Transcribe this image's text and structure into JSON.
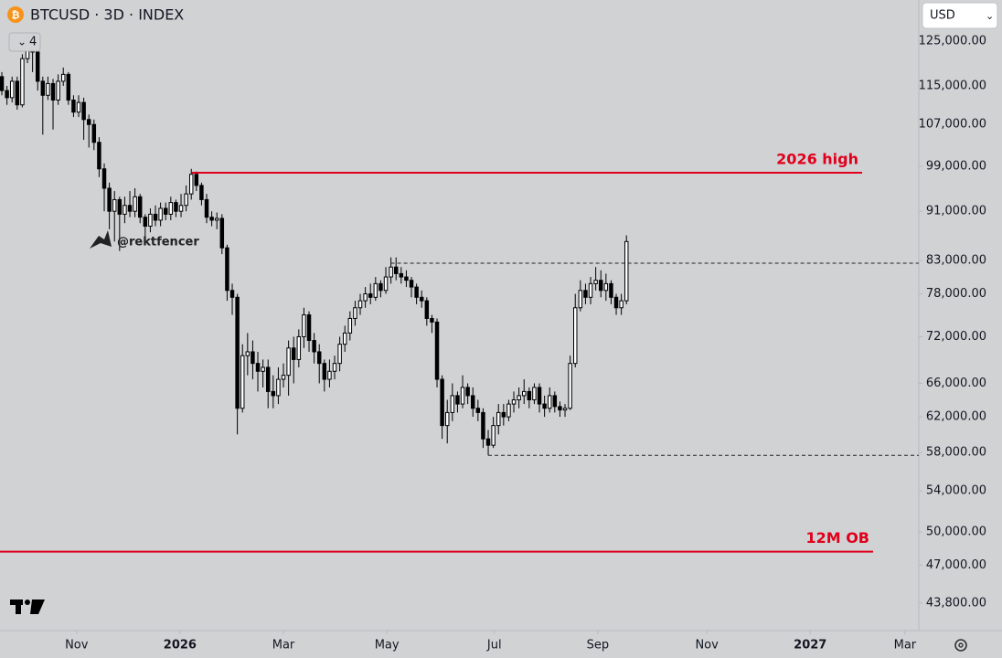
{
  "chart_data": {
    "type": "candlestick",
    "title": "BTCUSD · 3D · INDEX",
    "currency": "USD",
    "indicator_count": 4,
    "watermark": "@rektfencer",
    "log": true,
    "up_color": "#ffffff",
    "down_color": "#000000",
    "xlim": [
      -0.36,
      179.1
    ],
    "xticks": [
      {
        "value": 14.6,
        "label": "Nov"
      },
      {
        "value": 34.8,
        "label": "2026"
      },
      {
        "value": 55,
        "label": "Mar"
      },
      {
        "value": 75.2,
        "label": "May"
      },
      {
        "value": 96.2,
        "label": "Jul"
      },
      {
        "value": 116.4,
        "label": "Sep"
      },
      {
        "value": 137.7,
        "label": "Nov"
      },
      {
        "value": 157.9,
        "label": "2027"
      },
      {
        "value": 176.4,
        "label": "Mar"
      }
    ],
    "ylim": [
      41600,
      135000
    ],
    "yticks": [
      {
        "value": 125000,
        "label": "125,000.00"
      },
      {
        "value": 115000,
        "label": "115,000.00"
      },
      {
        "value": 107000,
        "label": "107,000.00"
      },
      {
        "value": 99000,
        "label": "99,000.00"
      },
      {
        "value": 91000,
        "label": "91,000.00"
      },
      {
        "value": 83000,
        "label": "83,000.00"
      },
      {
        "value": 78000,
        "label": "78,000.00"
      },
      {
        "value": 72000,
        "label": "72,000.00"
      },
      {
        "value": 66000,
        "label": "66,000.00"
      },
      {
        "value": 62000,
        "label": "62,000.00"
      },
      {
        "value": 58000,
        "label": "58,000.00"
      },
      {
        "value": 54000,
        "label": "54,000.00"
      },
      {
        "value": 50000,
        "label": "50,000.00"
      },
      {
        "value": 47000,
        "label": "47,000.00"
      },
      {
        "value": 43800,
        "label": "43,800.00"
      }
    ],
    "levels": [
      {
        "value": 97800,
        "label": "2026 high",
        "from": 37,
        "color": "#e0001b",
        "style": "solid"
      },
      {
        "value": 48200,
        "label": "12M OB",
        "from": -0.36,
        "color": "#e0001b",
        "style": "solid"
      },
      {
        "value": 82600,
        "from": 76,
        "color": "#222222",
        "style": "dashed"
      },
      {
        "value": 57700,
        "from": 95,
        "color": "#222222",
        "style": "dashed"
      }
    ],
    "open": [
      117000,
      114000,
      112500,
      116000,
      111000,
      121000,
      123000,
      122500,
      116000,
      113000,
      115500,
      112000,
      116000,
      117500,
      112000,
      109500,
      111500,
      108000,
      107000,
      103500,
      98500,
      95000,
      91000,
      93000,
      90500,
      92000,
      91000,
      93500,
      90000,
      88500,
      90500,
      89500,
      91500,
      90500,
      92500,
      91000,
      92000,
      94000,
      97500,
      95500,
      93000,
      90000,
      89500,
      89800,
      85000,
      78500,
      77500,
      63000,
      69500,
      70000,
      68500,
      67500,
      68000,
      65000,
      64500,
      66500,
      67000,
      70500,
      69000,
      72000,
      75000,
      71500,
      70000,
      68500,
      66500,
      67500,
      68500,
      71000,
      72500,
      74500,
      76000,
      77000,
      78000,
      77500,
      79500,
      78500,
      80500,
      82000,
      81000,
      80500,
      80000,
      79000,
      77500,
      77000,
      74500,
      74000,
      66500,
      61000,
      62500,
      64500,
      63500,
      65500,
      64500,
      63000,
      62500,
      59500,
      58800,
      61000,
      62500,
      62000,
      63500,
      64000,
      64500,
      65000,
      64000,
      65500,
      63500,
      63000,
      64500,
      63200,
      62800,
      63000,
      68500,
      76000,
      78500,
      77500,
      79500,
      80000,
      78500,
      79500,
      77500,
      76000,
      77000
    ],
    "high": [
      118000,
      115000,
      117000,
      117000,
      122000,
      124500,
      124000,
      123000,
      117000,
      117000,
      116500,
      117500,
      119000,
      118000,
      113000,
      113000,
      112500,
      109000,
      108000,
      104500,
      99500,
      96000,
      94500,
      93500,
      93500,
      94500,
      95000,
      94000,
      90500,
      91500,
      92000,
      92500,
      92500,
      93500,
      93000,
      94000,
      95500,
      98500,
      98000,
      96000,
      94000,
      91000,
      90800,
      90500,
      85500,
      79500,
      78000,
      71000,
      72500,
      71500,
      70000,
      69000,
      69000,
      67000,
      68000,
      68500,
      71500,
      72000,
      73000,
      76000,
      75500,
      72500,
      71000,
      69000,
      69000,
      69500,
      72000,
      73500,
      75500,
      77000,
      78000,
      79000,
      79500,
      80500,
      80000,
      82000,
      83500,
      83500,
      82000,
      81500,
      80500,
      79500,
      78500,
      77500,
      75000,
      74500,
      67000,
      64000,
      66000,
      65000,
      67000,
      66000,
      65500,
      64000,
      63000,
      60500,
      62000,
      63500,
      63500,
      64000,
      65000,
      65500,
      66500,
      65500,
      66000,
      66000,
      64500,
      65500,
      65000,
      63800,
      63500,
      69500,
      78000,
      80000,
      79500,
      80500,
      82000,
      81500,
      81000,
      80000,
      78000,
      78000,
      87000
    ],
    "low": [
      113000,
      111000,
      111500,
      110000,
      110500,
      120000,
      118000,
      114000,
      105000,
      112000,
      106000,
      111000,
      115000,
      111000,
      108500,
      108500,
      104000,
      102500,
      102000,
      97000,
      91000,
      88000,
      86000,
      84500,
      89000,
      90000,
      90000,
      89000,
      86500,
      87500,
      88500,
      88500,
      89500,
      89500,
      90000,
      90000,
      91000,
      93000,
      94500,
      92000,
      89000,
      88500,
      88000,
      84000,
      77000,
      75000,
      60000,
      62500,
      67000,
      66500,
      65000,
      65500,
      63000,
      63000,
      63500,
      65500,
      64500,
      66000,
      68000,
      70500,
      70000,
      68500,
      66000,
      65000,
      65500,
      66500,
      67500,
      70000,
      71500,
      73500,
      75000,
      76000,
      76500,
      77000,
      77500,
      78000,
      79500,
      80000,
      79500,
      79000,
      77500,
      76500,
      76000,
      73500,
      72500,
      65500,
      59500,
      59000,
      61500,
      62500,
      63000,
      63500,
      62000,
      61500,
      58500,
      57700,
      58500,
      60000,
      61000,
      61500,
      62500,
      63000,
      63500,
      63000,
      63500,
      62500,
      62000,
      62500,
      62500,
      62000,
      62000,
      62800,
      68000,
      75500,
      76500,
      76500,
      78500,
      77500,
      77000,
      76500,
      75000,
      75000,
      76500
    ],
    "close": [
      114000,
      112500,
      116000,
      111000,
      121000,
      123000,
      122500,
      116000,
      113000,
      115500,
      112000,
      116000,
      117500,
      112000,
      109500,
      111500,
      108000,
      107000,
      103500,
      98500,
      95000,
      91000,
      93000,
      90500,
      92000,
      91000,
      93500,
      90000,
      88500,
      90500,
      89500,
      91500,
      90500,
      92500,
      91000,
      92000,
      94000,
      97500,
      95500,
      93000,
      90000,
      89500,
      89800,
      85000,
      78500,
      77500,
      63000,
      69500,
      70000,
      68500,
      67500,
      68000,
      65000,
      64500,
      66500,
      67000,
      70500,
      69000,
      72000,
      75000,
      71500,
      70000,
      68500,
      66500,
      67500,
      68500,
      71000,
      72500,
      74500,
      76000,
      77000,
      78000,
      77500,
      79500,
      78500,
      80500,
      82000,
      81000,
      80500,
      80000,
      79000,
      77500,
      77000,
      74500,
      74000,
      66500,
      61000,
      62500,
      64500,
      63500,
      65500,
      64500,
      63000,
      62500,
      59500,
      58800,
      61000,
      62500,
      62000,
      63500,
      64000,
      64500,
      65000,
      64000,
      65500,
      63500,
      63000,
      64500,
      63200,
      62800,
      63000,
      68500,
      76000,
      78500,
      77500,
      79500,
      80000,
      78500,
      79500,
      77500,
      76000,
      77000,
      86000
    ]
  }
}
